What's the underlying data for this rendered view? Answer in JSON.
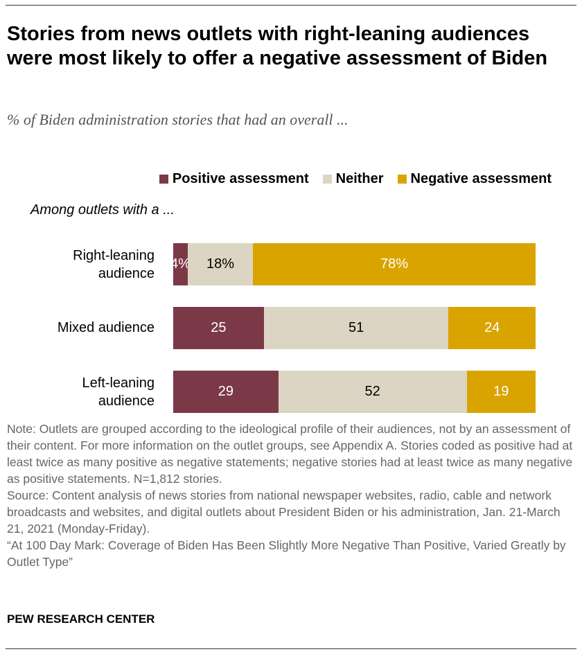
{
  "title": "Stories from news outlets with right-leaning audiences were most likely to offer a negative assessment of Biden",
  "subtitle": "% of Biden administration stories that had an overall ...",
  "among_label": "Among outlets with a ...",
  "colors": {
    "positive": "#7B3947",
    "neither": "#DCD5C3",
    "negative": "#D9A400"
  },
  "chart_data": {
    "type": "bar",
    "orientation": "horizontal-stacked",
    "categories": [
      "Right-leaning audience",
      "Mixed audience",
      "Left-leaning audience"
    ],
    "series": [
      {
        "name": "Positive assessment",
        "values": [
          4,
          25,
          29
        ],
        "labels": [
          "4%",
          "25",
          "29"
        ]
      },
      {
        "name": "Neither",
        "values": [
          18,
          51,
          52
        ],
        "labels": [
          "18%",
          "51",
          "52"
        ]
      },
      {
        "name": "Negative assessment",
        "values": [
          78,
          24,
          19
        ],
        "labels": [
          "78%",
          "24",
          "19"
        ]
      }
    ],
    "legend": "top-right",
    "xlim": [
      0,
      100
    ]
  },
  "notes": [
    "Note: Outlets are grouped according to the ideological profile of their audiences, not by an assessment of their content. For more information on the outlet groups, see Appendix A. Stories coded as positive had at least twice as many positive as negative statements; negative stories had at least twice as many negative as positive statements. N=1,812 stories.",
    "Source: Content analysis of news stories from national newspaper websites, radio, cable and network broadcasts and websites, and digital outlets about President Biden or his administration, Jan. 21-March 21, 2021 (Monday-Friday).",
    "“At 100 Day Mark: Coverage of Biden Has Been Slightly More Negative Than Positive, Varied Greatly by Outlet Type”"
  ],
  "brand": "PEW RESEARCH CENTER"
}
